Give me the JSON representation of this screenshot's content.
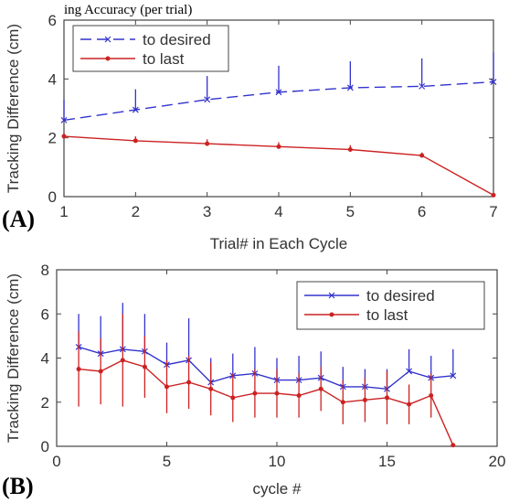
{
  "top_text": "ing Accuracy (per trial)",
  "chart_data": [
    {
      "type": "line",
      "panel_label": "(A)",
      "xlabel": "Trial# in Each Cycle",
      "ylabel": "Tracking Difference (cm)",
      "xlim": [
        1,
        7
      ],
      "ylim": [
        0,
        6
      ],
      "xticks": [
        1,
        2,
        3,
        4,
        5,
        6,
        7
      ],
      "yticks": [
        0,
        2,
        4,
        6
      ],
      "grid": false,
      "legend": "top-left",
      "x": [
        1,
        2,
        3,
        4,
        5,
        6,
        7
      ],
      "series": [
        {
          "name": "to desired",
          "color": "#3333cc",
          "dash": true,
          "marker": "x",
          "values": [
            2.6,
            2.95,
            3.3,
            3.55,
            3.7,
            3.75,
            3.9
          ],
          "error": [
            0.7,
            0.7,
            0.8,
            0.9,
            0.9,
            0.95,
            1.0
          ]
        },
        {
          "name": "to last",
          "color": "#cc2222",
          "dash": false,
          "marker": "dot",
          "values": [
            2.05,
            1.9,
            1.8,
            1.7,
            1.6,
            1.4,
            0.05
          ],
          "error": [
            0.1,
            0.15,
            0.15,
            0.15,
            0.15,
            0.1,
            0.05
          ]
        }
      ]
    },
    {
      "type": "line",
      "panel_label": "(B)",
      "xlabel": "cycle #",
      "ylabel": "Tracking Difference (cm)",
      "xlim": [
        0,
        20
      ],
      "ylim": [
        0,
        8
      ],
      "xticks": [
        0,
        5,
        10,
        15,
        20
      ],
      "yticks": [
        0,
        2,
        4,
        6,
        8
      ],
      "grid": false,
      "legend": "top-right",
      "x": [
        1,
        2,
        3,
        4,
        5,
        6,
        7,
        8,
        9,
        10,
        11,
        12,
        13,
        14,
        15,
        16,
        17,
        18
      ],
      "series": [
        {
          "name": "to desired",
          "color": "#3333cc",
          "dash": false,
          "marker": "x",
          "values": [
            4.5,
            4.2,
            4.4,
            4.3,
            3.7,
            3.9,
            2.9,
            3.2,
            3.3,
            3.0,
            3.0,
            3.1,
            2.7,
            2.7,
            2.6,
            3.4,
            3.1,
            3.2
          ],
          "error": [
            1.5,
            1.7,
            2.1,
            1.7,
            1.0,
            1.9,
            1.1,
            1.0,
            1.2,
            1.0,
            1.1,
            1.2,
            0.9,
            0.8,
            0.9,
            1.0,
            1.0,
            1.2
          ]
        },
        {
          "name": "to last",
          "color": "#cc2222",
          "dash": false,
          "marker": "dot",
          "values": [
            3.5,
            3.4,
            3.9,
            3.6,
            2.7,
            2.9,
            2.6,
            2.2,
            2.4,
            2.4,
            2.3,
            2.6,
            2.0,
            2.1,
            2.2,
            1.9,
            2.3,
            0.05
          ],
          "error": [
            1.7,
            1.5,
            2.1,
            1.4,
            1.2,
            1.2,
            1.2,
            1.1,
            1.1,
            1.1,
            1.0,
            1.0,
            1.0,
            1.0,
            1.2,
            0.9,
            1.0,
            0.05
          ]
        }
      ]
    }
  ]
}
